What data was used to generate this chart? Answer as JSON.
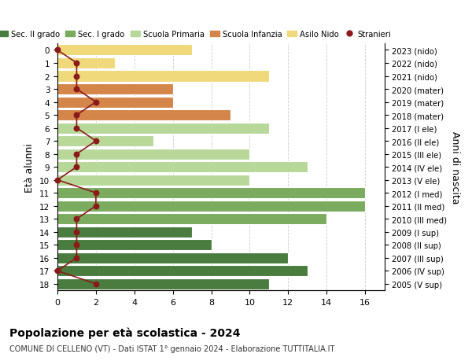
{
  "ages": [
    18,
    17,
    16,
    15,
    14,
    13,
    12,
    11,
    10,
    9,
    8,
    7,
    6,
    5,
    4,
    3,
    2,
    1,
    0
  ],
  "years": [
    "2005 (V sup)",
    "2006 (IV sup)",
    "2007 (III sup)",
    "2008 (II sup)",
    "2009 (I sup)",
    "2010 (III med)",
    "2011 (II med)",
    "2012 (I med)",
    "2013 (V ele)",
    "2014 (IV ele)",
    "2015 (III ele)",
    "2016 (II ele)",
    "2017 (I ele)",
    "2018 (mater)",
    "2019 (mater)",
    "2020 (mater)",
    "2021 (nido)",
    "2022 (nido)",
    "2023 (nido)"
  ],
  "bar_values": [
    11,
    13,
    12,
    8,
    7,
    14,
    16,
    16,
    10,
    13,
    10,
    5,
    11,
    9,
    6,
    6,
    11,
    3,
    7
  ],
  "bar_colors": [
    "#4a7c3f",
    "#4a7c3f",
    "#4a7c3f",
    "#4a7c3f",
    "#4a7c3f",
    "#7aab5e",
    "#7aab5e",
    "#7aab5e",
    "#b8d89a",
    "#b8d89a",
    "#b8d89a",
    "#b8d89a",
    "#b8d89a",
    "#d4854a",
    "#d4854a",
    "#d4854a",
    "#f0d97a",
    "#f0d97a",
    "#f0d97a"
  ],
  "stranieri_x": [
    2,
    0,
    1,
    1,
    1,
    1,
    2,
    2,
    0,
    1,
    1,
    2,
    1,
    1,
    2,
    1,
    1,
    1,
    0
  ],
  "xlim": [
    0,
    17
  ],
  "xticks": [
    0,
    2,
    4,
    6,
    8,
    10,
    12,
    14,
    16
  ],
  "title": "Popolazione per età scolastica - 2024",
  "subtitle": "COMUNE DI CELLENO (VT) - Dati ISTAT 1° gennaio 2024 - Elaborazione TUTTITALIA.IT",
  "ylabel_left": "Età alunni",
  "ylabel_right": "Anni di nascita",
  "legend_items": [
    {
      "label": "Sec. II grado",
      "color": "#4a7c3f"
    },
    {
      "label": "Sec. I grado",
      "color": "#7aab5e"
    },
    {
      "label": "Scuola Primaria",
      "color": "#b8d89a"
    },
    {
      "label": "Scuola Infanzia",
      "color": "#d4854a"
    },
    {
      "label": "Asilo Nido",
      "color": "#f0d97a"
    },
    {
      "label": "Stranieri",
      "color": "#8b1a1a"
    }
  ],
  "bar_edge_color": "#ffffff",
  "grid_color": "#cccccc",
  "bg_color": "#ffffff",
  "line_color": "#8b1a1a",
  "dot_color": "#8b1a1a"
}
